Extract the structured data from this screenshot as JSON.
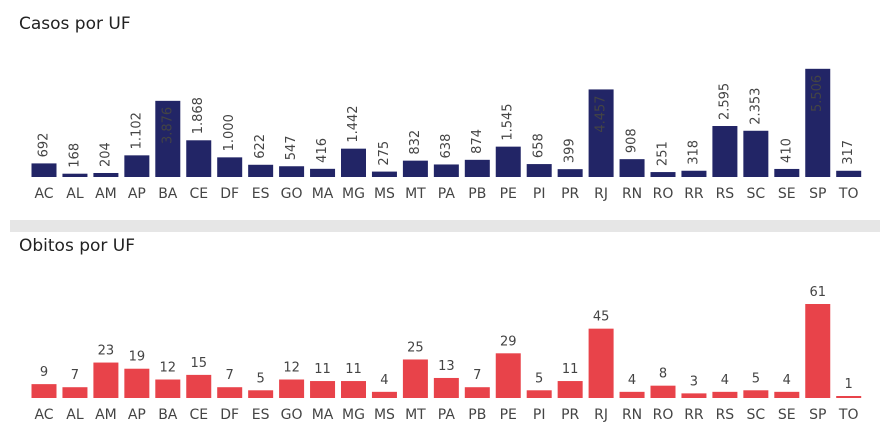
{
  "chart_data": [
    {
      "type": "bar",
      "title": "Casos por UF",
      "categories": [
        "AC",
        "AL",
        "AM",
        "AP",
        "BA",
        "CE",
        "DF",
        "ES",
        "GO",
        "MA",
        "MG",
        "MS",
        "MT",
        "PA",
        "PB",
        "PE",
        "PI",
        "PR",
        "RJ",
        "RN",
        "RO",
        "RR",
        "RS",
        "SC",
        "SE",
        "SP",
        "TO"
      ],
      "values": [
        692,
        168,
        204,
        1102,
        3876,
        1868,
        1000,
        622,
        547,
        416,
        1442,
        275,
        832,
        638,
        874,
        1545,
        658,
        399,
        4457,
        908,
        251,
        318,
        2595,
        2353,
        410,
        5506,
        317
      ],
      "data_labels": [
        "692",
        "168",
        "204",
        "1.102",
        "3.876",
        "1.868",
        "1.000",
        "622",
        "547",
        "416",
        "1.442",
        "275",
        "832",
        "638",
        "874",
        "1.545",
        "658",
        "399",
        "4.457",
        "908",
        "251",
        "318",
        "2.595",
        "2.353",
        "410",
        "5.506",
        "317"
      ],
      "color": "#222566",
      "ylim": [
        0,
        5700
      ],
      "grid": false
    },
    {
      "type": "bar",
      "title": "Obitos por UF",
      "categories": [
        "AC",
        "AL",
        "AM",
        "AP",
        "BA",
        "CE",
        "DF",
        "ES",
        "GO",
        "MA",
        "MG",
        "MS",
        "MT",
        "PA",
        "PB",
        "PE",
        "PI",
        "PR",
        "RJ",
        "RN",
        "RO",
        "RR",
        "RS",
        "SC",
        "SE",
        "SP",
        "TO"
      ],
      "values": [
        9,
        7,
        23,
        19,
        12,
        15,
        7,
        5,
        12,
        11,
        11,
        4,
        25,
        13,
        7,
        29,
        5,
        11,
        45,
        4,
        8,
        3,
        4,
        5,
        4,
        61,
        1
      ],
      "data_labels": [
        "9",
        "7",
        "23",
        "19",
        "12",
        "15",
        "7",
        "5",
        "12",
        "11",
        "11",
        "4",
        "25",
        "13",
        "7",
        "29",
        "5",
        "11",
        "45",
        "4",
        "8",
        "3",
        "4",
        "5",
        "4",
        "61",
        "1"
      ],
      "color": "#e8434a",
      "ylim": [
        0,
        61
      ],
      "grid": false
    }
  ]
}
